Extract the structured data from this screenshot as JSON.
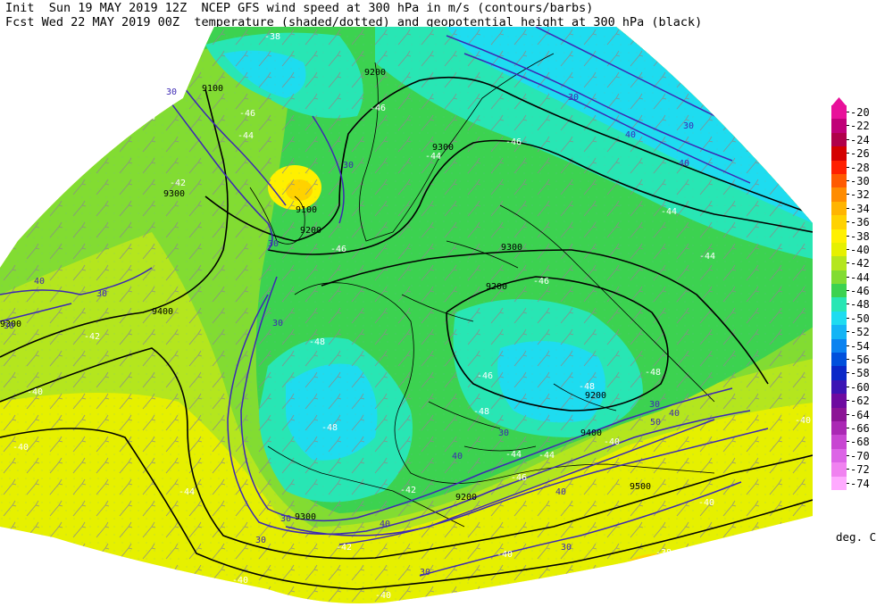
{
  "header": {
    "line1": "Init  Sun 19 MAY 2019 12Z  NCEP GFS wind speed at 300 hPa in m/s (contours/barbs)",
    "line2": "Fcst Wed 22 MAY 2019 00Z  temperature (shaded/dotted) and geopotential height at 300 hPa (black)"
  },
  "legend": {
    "unit": "deg. C",
    "entries": [
      {
        "label": "-20",
        "color": "#e8109a"
      },
      {
        "label": "-22",
        "color": "#c00078"
      },
      {
        "label": "-24",
        "color": "#b0004a"
      },
      {
        "label": "-26",
        "color": "#d40000"
      },
      {
        "label": "-28",
        "color": "#ff2000"
      },
      {
        "label": "-30",
        "color": "#ff5a00"
      },
      {
        "label": "-32",
        "color": "#ff8c00"
      },
      {
        "label": "-34",
        "color": "#ffb400"
      },
      {
        "label": "-36",
        "color": "#ffd200"
      },
      {
        "label": "-38",
        "color": "#fff000"
      },
      {
        "label": "-40",
        "color": "#e6f000"
      },
      {
        "label": "-42",
        "color": "#b4e61e"
      },
      {
        "label": "-44",
        "color": "#82dc32"
      },
      {
        "label": "-46",
        "color": "#3cd250"
      },
      {
        "label": "-48",
        "color": "#28e6b4"
      },
      {
        "label": "-50",
        "color": "#1edcf0"
      },
      {
        "label": "-52",
        "color": "#14b4f5"
      },
      {
        "label": "-54",
        "color": "#0a82f0"
      },
      {
        "label": "-56",
        "color": "#0050dc"
      },
      {
        "label": "-58",
        "color": "#0a28c8"
      },
      {
        "label": "-60",
        "color": "#3c14b4"
      },
      {
        "label": "-62",
        "color": "#6e0aa0"
      },
      {
        "label": "-64",
        "color": "#8c1496"
      },
      {
        "label": "-66",
        "color": "#aa28b4"
      },
      {
        "label": "-68",
        "color": "#c846d2"
      },
      {
        "label": "-70",
        "color": "#dc64e6"
      },
      {
        "label": "-72",
        "color": "#f082f0"
      },
      {
        "label": "-74",
        "color": "#ffaaff"
      }
    ]
  },
  "map_labels": {
    "height": [
      {
        "text": "9100",
        "color": "#000000"
      },
      {
        "text": "9200",
        "color": "#000000"
      },
      {
        "text": "9300",
        "color": "#000000"
      },
      {
        "text": "9300",
        "color": "#000000"
      },
      {
        "text": "9300",
        "color": "#000000"
      },
      {
        "text": "9200",
        "color": "#000000"
      },
      {
        "text": "9200",
        "color": "#000000"
      },
      {
        "text": "9400",
        "color": "#000000"
      },
      {
        "text": "9100",
        "color": "#000000"
      },
      {
        "text": "9200",
        "color": "#000000"
      },
      {
        "text": "9300",
        "color": "#000000"
      },
      {
        "text": "9200",
        "color": "#000000"
      },
      {
        "text": "9400",
        "color": "#000000"
      },
      {
        "text": "9500",
        "color": "#000000"
      },
      {
        "text": "9300",
        "color": "#000000"
      }
    ],
    "wind": [
      {
        "text": "30"
      },
      {
        "text": "30"
      },
      {
        "text": "30"
      },
      {
        "text": "30"
      },
      {
        "text": "30"
      },
      {
        "text": "40"
      },
      {
        "text": "30"
      },
      {
        "text": "30"
      },
      {
        "text": "30"
      },
      {
        "text": "40"
      },
      {
        "text": "40"
      },
      {
        "text": "30"
      },
      {
        "text": "40"
      },
      {
        "text": "30"
      },
      {
        "text": "30"
      },
      {
        "text": "40"
      },
      {
        "text": "30"
      },
      {
        "text": "40"
      },
      {
        "text": "50"
      },
      {
        "text": "30"
      },
      {
        "text": "40"
      },
      {
        "text": "30"
      }
    ],
    "temperature": [
      {
        "text": "-38"
      },
      {
        "text": "-44"
      },
      {
        "text": "-46"
      },
      {
        "text": "-44"
      },
      {
        "text": "-42"
      },
      {
        "text": "-46"
      },
      {
        "text": "-44"
      },
      {
        "text": "-46"
      },
      {
        "text": "-46"
      },
      {
        "text": "-44"
      },
      {
        "text": "-44"
      },
      {
        "text": "-46"
      },
      {
        "text": "-48"
      },
      {
        "text": "-48"
      },
      {
        "text": "-48"
      },
      {
        "text": "-48"
      },
      {
        "text": "-48"
      },
      {
        "text": "-46"
      },
      {
        "text": "-44"
      },
      {
        "text": "-42"
      },
      {
        "text": "-40"
      },
      {
        "text": "-40"
      },
      {
        "text": "-40"
      },
      {
        "text": "-40"
      },
      {
        "text": "-42"
      },
      {
        "text": "-40"
      },
      {
        "text": "-38"
      },
      {
        "text": "-40"
      },
      {
        "text": "-42"
      },
      {
        "text": "-40"
      },
      {
        "text": "-44"
      },
      {
        "text": "-46"
      },
      {
        "text": "-40"
      },
      {
        "text": "-44"
      }
    ]
  }
}
